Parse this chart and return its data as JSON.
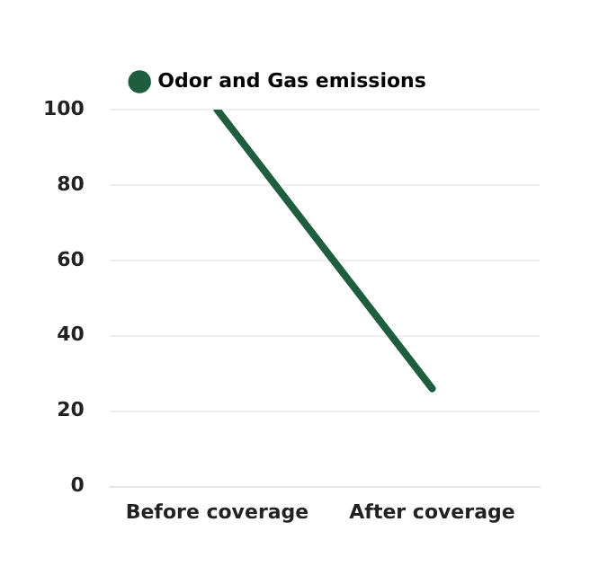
{
  "chart_data": {
    "type": "line",
    "categories": [
      "Before coverage",
      "After coverage"
    ],
    "series": [
      {
        "name": "Odor and Gas emissions",
        "color": "#1e5e3e",
        "values": [
          100,
          26
        ]
      }
    ],
    "ylim": [
      0,
      100
    ],
    "yticks": [
      0,
      20,
      40,
      60,
      80,
      100
    ],
    "grid": "y",
    "legend": "top",
    "marker": "none",
    "line_style": "solid"
  }
}
